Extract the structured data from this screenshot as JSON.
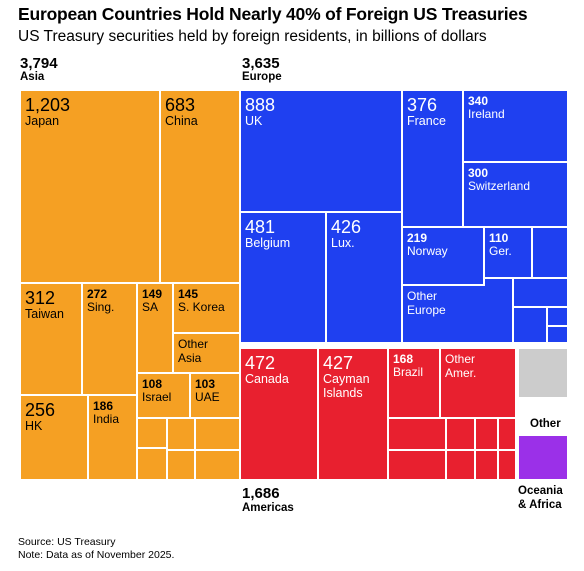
{
  "title": "European Countries Hold Nearly 40% of Foreign US Treasuries",
  "subtitle": "US Treasury securities held by foreign residents, in billions of dollars",
  "footer": {
    "source": "Source: US Treasury",
    "note": "Note: Data as of November 2025."
  },
  "colors": {
    "asia": "#F5A023",
    "europe": "#1F40F0",
    "americas": "#E8202F",
    "oceania_africa": "#9B30E8",
    "other": "#CCCCCC"
  },
  "regions": {
    "asia": {
      "name": "Asia",
      "total": "3,794"
    },
    "europe": {
      "name": "Europe",
      "total": "3,635"
    },
    "americas": {
      "name": "Americas",
      "total": "1,686"
    },
    "other": {
      "name": "Other"
    },
    "oceania_africa": {
      "name": "Oceania & Africa",
      "line1": "Oceania",
      "line2": "& Africa"
    }
  },
  "chart_data": {
    "type": "treemap",
    "title": "European Countries Hold Nearly 40% of Foreign US Treasuries",
    "subtitle": "US Treasury securities held by foreign residents, in billions of dollars",
    "unit": "billions of dollars",
    "groups": [
      {
        "region": "Asia",
        "total": 3794,
        "items": [
          {
            "label": "Japan",
            "value": 1203
          },
          {
            "label": "China",
            "value": 683
          },
          {
            "label": "Taiwan",
            "value": 312
          },
          {
            "label": "Sing.",
            "value": 272
          },
          {
            "label": "SA",
            "value": 149
          },
          {
            "label": "S. Korea",
            "value": 145
          },
          {
            "label": "Other Asia",
            "value": null
          },
          {
            "label": "HK",
            "value": 256
          },
          {
            "label": "India",
            "value": 186
          },
          {
            "label": "Israel",
            "value": 108
          },
          {
            "label": "UAE",
            "value": 103
          }
        ]
      },
      {
        "region": "Europe",
        "total": 3635,
        "items": [
          {
            "label": "UK",
            "value": 888
          },
          {
            "label": "France",
            "value": 376
          },
          {
            "label": "Ireland",
            "value": 340
          },
          {
            "label": "Switzerland",
            "value": 300
          },
          {
            "label": "Belgium",
            "value": 481
          },
          {
            "label": "Lux.",
            "value": 426
          },
          {
            "label": "Norway",
            "value": 219
          },
          {
            "label": "Ger.",
            "value": 110
          },
          {
            "label": "Other Europe",
            "value": null
          }
        ]
      },
      {
        "region": "Americas",
        "total": 1686,
        "items": [
          {
            "label": "Canada",
            "value": 472
          },
          {
            "label": "Cayman Islands",
            "value": 427
          },
          {
            "label": "Brazil",
            "value": 168
          },
          {
            "label": "Other Amer.",
            "value": null
          }
        ]
      },
      {
        "region": "Other",
        "total": null,
        "items": []
      },
      {
        "region": "Oceania & Africa",
        "total": null,
        "items": []
      }
    ]
  },
  "tiles": [
    {
      "id": "japan",
      "g": "asia",
      "value": "1,203",
      "name": "Japan",
      "name2": ""
    },
    {
      "id": "china",
      "g": "asia",
      "value": "683",
      "name": "China",
      "name2": ""
    },
    {
      "id": "taiwan",
      "g": "asia",
      "value": "312",
      "name": "Taiwan",
      "name2": ""
    },
    {
      "id": "sing",
      "g": "asia",
      "value": "272",
      "name": "Sing.",
      "name2": ""
    },
    {
      "id": "sa",
      "g": "asia",
      "value": "149",
      "name": "SA",
      "name2": ""
    },
    {
      "id": "skorea",
      "g": "asia",
      "value": "145",
      "name": "S. Korea",
      "name2": ""
    },
    {
      "id": "other-asia",
      "g": "asia",
      "value": "",
      "name": "Other",
      "name2": "Asia"
    },
    {
      "id": "hk",
      "g": "asia",
      "value": "256",
      "name": "HK",
      "name2": ""
    },
    {
      "id": "india",
      "g": "asia",
      "value": "186",
      "name": "India",
      "name2": ""
    },
    {
      "id": "israel",
      "g": "asia",
      "value": "108",
      "name": "Israel",
      "name2": ""
    },
    {
      "id": "uae",
      "g": "asia",
      "value": "103",
      "name": "UAE",
      "name2": ""
    },
    {
      "id": "uk",
      "g": "europe",
      "value": "888",
      "name": "UK",
      "name2": ""
    },
    {
      "id": "france",
      "g": "europe",
      "value": "376",
      "name": "France",
      "name2": ""
    },
    {
      "id": "ireland",
      "g": "europe",
      "value": "340",
      "name": "Ireland",
      "name2": ""
    },
    {
      "id": "switzerland",
      "g": "europe",
      "value": "300",
      "name": "Switzerland",
      "name2": ""
    },
    {
      "id": "belgium",
      "g": "europe",
      "value": "481",
      "name": "Belgium",
      "name2": ""
    },
    {
      "id": "lux",
      "g": "europe",
      "value": "426",
      "name": "Lux.",
      "name2": ""
    },
    {
      "id": "norway",
      "g": "europe",
      "value": "219",
      "name": "Norway",
      "name2": ""
    },
    {
      "id": "ger",
      "g": "europe",
      "value": "110",
      "name": "Ger.",
      "name2": ""
    },
    {
      "id": "other-europe",
      "g": "europe",
      "value": "",
      "name": "Other",
      "name2": "Europe"
    },
    {
      "id": "canada",
      "g": "americas",
      "value": "472",
      "name": "Canada",
      "name2": ""
    },
    {
      "id": "cayman",
      "g": "americas",
      "value": "427",
      "name": "Cayman",
      "name2": "Islands"
    },
    {
      "id": "brazil",
      "g": "americas",
      "value": "168",
      "name": "Brazil",
      "name2": ""
    },
    {
      "id": "other-amer",
      "g": "americas",
      "value": "",
      "name": "Other",
      "name2": "Amer."
    }
  ]
}
